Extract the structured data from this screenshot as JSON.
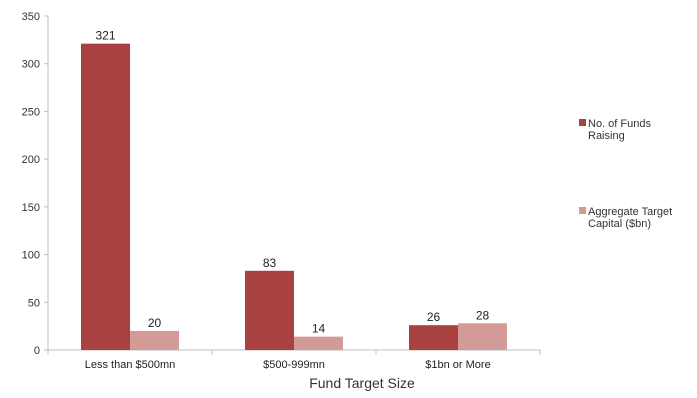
{
  "chart_data": {
    "type": "bar",
    "categories": [
      "Less than $500mn",
      "$500-999mn",
      "$1bn or More"
    ],
    "series": [
      {
        "name": "No. of Funds Raising",
        "values": [
          321,
          83,
          26
        ],
        "color": "#A8413F"
      },
      {
        "name": "Aggregate Target Capital ($bn)",
        "values": [
          20,
          14,
          28
        ],
        "color": "#D39A98"
      }
    ],
    "legend_lines": [
      [
        "No. of Funds",
        "Raising"
      ],
      [
        "Aggregate Target",
        "Capital ($bn)"
      ]
    ],
    "xlabel": "Fund Target Size",
    "ylabel": "",
    "ylim": [
      0,
      350
    ],
    "yticks": [
      0,
      50,
      100,
      150,
      200,
      250,
      300,
      350
    ],
    "grid": false,
    "legend_position": "right"
  }
}
